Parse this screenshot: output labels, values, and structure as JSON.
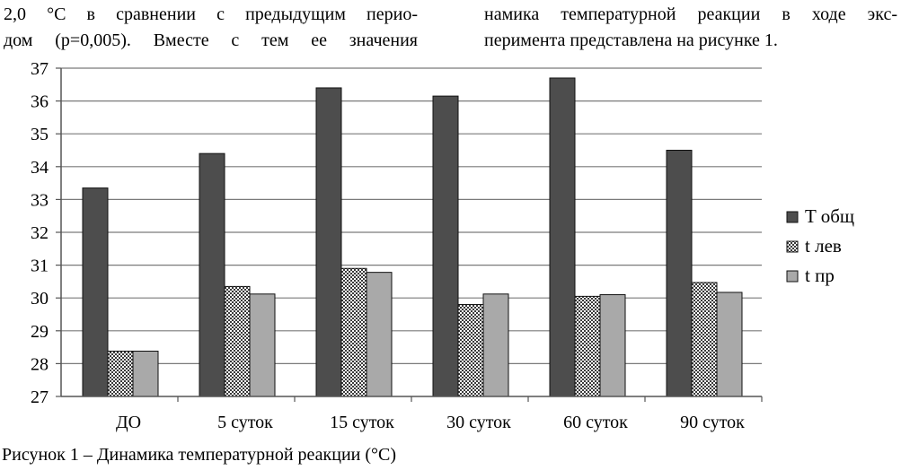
{
  "text_left": [
    "2,0 °С в сравнении с предыдущим перио-",
    "дом (p=0,005). Вместе с тем ее значения"
  ],
  "text_right": [
    "намика температурной реакции в ходе экс-",
    "перимента представлена на рисунке 1."
  ],
  "caption": "Рисунок 1 – Динамика температурной реакции (°С)",
  "chart_data": {
    "type": "bar",
    "categories": [
      "ДО",
      "5 суток",
      "15 суток",
      "30 суток",
      "60 суток",
      "90 суток"
    ],
    "series": [
      {
        "name": "T общ",
        "values": [
          33.35,
          34.4,
          36.4,
          36.15,
          36.7,
          34.5
        ],
        "color": "#4d4d4d",
        "pattern": "solid"
      },
      {
        "name": "t лев",
        "values": [
          28.38,
          30.35,
          30.9,
          29.8,
          30.05,
          30.47
        ],
        "color": "#ffffff",
        "pattern": "checker"
      },
      {
        "name": "t пр",
        "values": [
          28.38,
          30.12,
          30.78,
          30.12,
          30.1,
          30.17
        ],
        "color": "#a9a9a9",
        "pattern": "solid"
      }
    ],
    "ylim": [
      27,
      37
    ],
    "yticks": [
      27,
      28,
      29,
      30,
      31,
      32,
      33,
      34,
      35,
      36,
      37
    ],
    "grid": true,
    "legend_position": "right"
  }
}
